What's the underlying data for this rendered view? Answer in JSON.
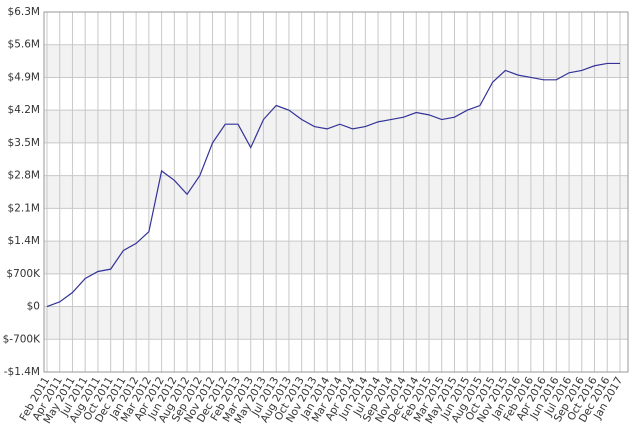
{
  "chart_data": {
    "type": "line",
    "categories": [
      "Feb 2011",
      "Apr 2011",
      "May 2011",
      "Jul 2011",
      "Aug 2011",
      "Oct 2011",
      "Dec 2011",
      "Jan 2012",
      "Mar 2012",
      "Apr 2012",
      "Jun 2012",
      "Aug 2012",
      "Sep 2012",
      "Nov 2012",
      "Dec 2012",
      "Feb 2013",
      "Mar 2013",
      "May 2013",
      "Jul 2013",
      "Aug 2013",
      "Oct 2013",
      "Nov 2013",
      "Jan 2014",
      "Mar 2014",
      "Apr 2014",
      "Jun 2014",
      "Jul 2014",
      "Sep 2014",
      "Nov 2014",
      "Dec 2014",
      "Feb 2015",
      "Mar 2015",
      "May 2015",
      "Jun 2015",
      "Aug 2015",
      "Oct 2015",
      "Nov 2015",
      "Jan 2016",
      "Feb 2016",
      "Apr 2016",
      "Jun 2016",
      "Jul 2016",
      "Sep 2016",
      "Oct 2016",
      "Dec 2016",
      "Jan 2017"
    ],
    "series": [
      {
        "color": "#333399",
        "values": [
          0,
          100000,
          300000,
          600000,
          750000,
          800000,
          1200000,
          1350000,
          1600000,
          2900000,
          2700000,
          2400000,
          2800000,
          3500000,
          3900000,
          3900000,
          3400000,
          4000000,
          4300000,
          4200000,
          4000000,
          3850000,
          3800000,
          3900000,
          3800000,
          3850000,
          3950000,
          4000000,
          4050000,
          4150000,
          4100000,
          4000000,
          4050000,
          4200000,
          4300000,
          4800000,
          5050000,
          4950000,
          4900000,
          4850000,
          4850000,
          5000000,
          5050000,
          5150000,
          5200000,
          5200000
        ]
      }
    ],
    "ylim": [
      -1400000,
      6300000
    ],
    "yticks": [
      {
        "value": -1400000,
        "label": "-$1.4M"
      },
      {
        "value": -700000,
        "label": "$-700K"
      },
      {
        "value": 0,
        "label": "$0"
      },
      {
        "value": 700000,
        "label": "$700K"
      },
      {
        "value": 1400000,
        "label": "$1.4M"
      },
      {
        "value": 2100000,
        "label": "$2.1M"
      },
      {
        "value": 2800000,
        "label": "$2.8M"
      },
      {
        "value": 3500000,
        "label": "$3.5M"
      },
      {
        "value": 4200000,
        "label": "$4.2M"
      },
      {
        "value": 4900000,
        "label": "$4.9M"
      },
      {
        "value": 5600000,
        "label": "$5.6M"
      },
      {
        "value": 6300000,
        "label": "$6.3M"
      }
    ],
    "grid": true
  }
}
